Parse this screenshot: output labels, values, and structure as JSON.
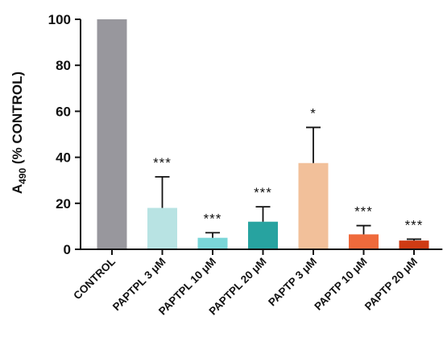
{
  "chart_data": {
    "type": "bar",
    "ylabel": {
      "main": "A",
      "sub": "490",
      "rest": " (% CONTROL)"
    },
    "ylim": [
      0,
      100
    ],
    "yticks": [
      0,
      20,
      40,
      60,
      80,
      100
    ],
    "categories": [
      "CONTROL",
      "PAPTPL 3 μM",
      "PAPTPL 10 μM",
      "PAPTPL 20 μM",
      "PAPTP 3 μM",
      "PAPTP 10 μM",
      "PAPTP 20 μM"
    ],
    "values": [
      100,
      18,
      5,
      12,
      37.5,
      6.5,
      3.8
    ],
    "errors": [
      0,
      13.5,
      2.2,
      6.5,
      15.5,
      3.8,
      0.6
    ],
    "significance": [
      "",
      "***",
      "***",
      "***",
      "*",
      "***",
      "***"
    ],
    "colors": [
      "#98979d",
      "#b8e3e3",
      "#7ad6d8",
      "#27a3a0",
      "#f2c09a",
      "#ef6a3c",
      "#cf3b14"
    ],
    "grid": false,
    "legend": "none"
  }
}
